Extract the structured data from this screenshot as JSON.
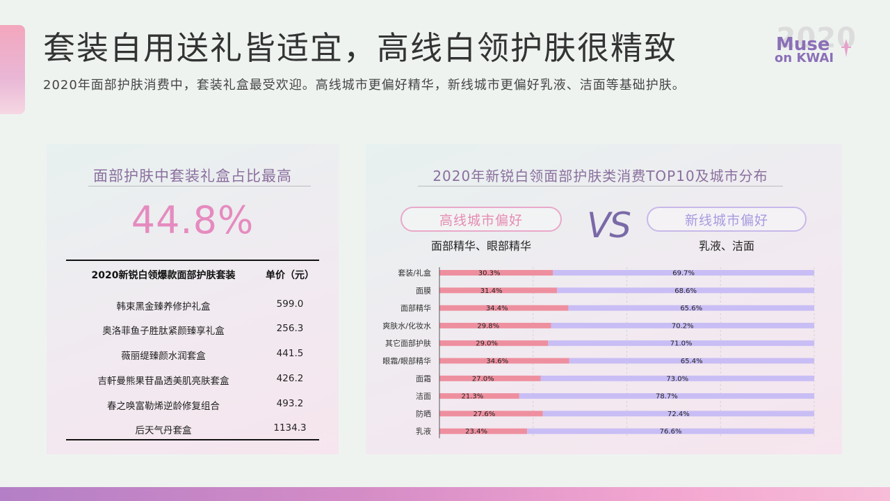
{
  "header": {
    "title": "套装自用送礼皆适宜，高线白领护肤很精致",
    "subtitle": "2020年面部护肤消费中，套装礼盒最受欢迎。高线城市更偏好精华，新线城市更偏好乳液、洁面等基础护肤。"
  },
  "logo": {
    "year": "2020",
    "line1": "Muse",
    "line2": "on KWAI"
  },
  "left_panel": {
    "heading": "面部护肤中套装礼盒占比最高",
    "big_value": "44.8%",
    "table": {
      "col_name": "2020新锐白领爆款面部护肤套装",
      "col_price": "单价（元）",
      "rows": [
        {
          "name": "韩束黑金臻养修护礼盒",
          "price": "599.0"
        },
        {
          "name": "奥洛菲鱼子胜肽紧颜臻享礼盒",
          "price": "256.3"
        },
        {
          "name": "薇丽缇臻颜水润套盒",
          "price": "441.5"
        },
        {
          "name": "吉軒曼熊果苷晶透美肌亮肤套盒",
          "price": "426.2"
        },
        {
          "name": "春之唤富勒烯逆龄修复组合",
          "price": "493.2"
        },
        {
          "name": "后天气丹套盒",
          "price": "1134.3"
        }
      ]
    }
  },
  "right_panel": {
    "heading": "2020年新锐白领面部护肤类消费TOP10及城市分布",
    "high_label": "高线城市偏好",
    "high_items": "面部精华、眼部精华",
    "vs": "VS",
    "new_label": "新线城市偏好",
    "new_items": "乳液、洁面"
  },
  "colors": {
    "high_bar": "#ee8f9f",
    "new_bar": "#c9bdf5",
    "accent_pink": "#e58bbf",
    "accent_purple": "#8a6f9e"
  },
  "chart_data": {
    "type": "bar",
    "orientation": "horizontal",
    "stacked": true,
    "normalized": true,
    "categories": [
      "套装/礼盒",
      "面膜",
      "面部精华",
      "爽肤水/化妆水",
      "其它面部护肤",
      "眼霜/眼部精华",
      "面霜",
      "洁面",
      "防晒",
      "乳液"
    ],
    "series": [
      {
        "values": [
          30.3,
          31.4,
          34.4,
          29.8,
          29.0,
          34.6,
          27.0,
          21.3,
          27.6,
          23.4
        ],
        "labels": [
          "30.3%",
          "31.4%",
          "34.4%",
          "29.8%",
          "29.0%",
          "34.6%",
          "27.0%",
          "21.3%",
          "27.6%",
          "23.4%"
        ]
      },
      {
        "values": [
          69.7,
          68.6,
          65.6,
          70.2,
          71.0,
          65.4,
          73.0,
          78.7,
          72.4,
          76.6
        ],
        "labels": [
          "69.7%",
          "68.6%",
          "65.6%",
          "70.2%",
          "71.0%",
          "65.4%",
          "73.0%",
          "78.7%",
          "72.4%",
          "76.6%"
        ]
      }
    ],
    "xlim": [
      0,
      100
    ],
    "grid": true
  }
}
